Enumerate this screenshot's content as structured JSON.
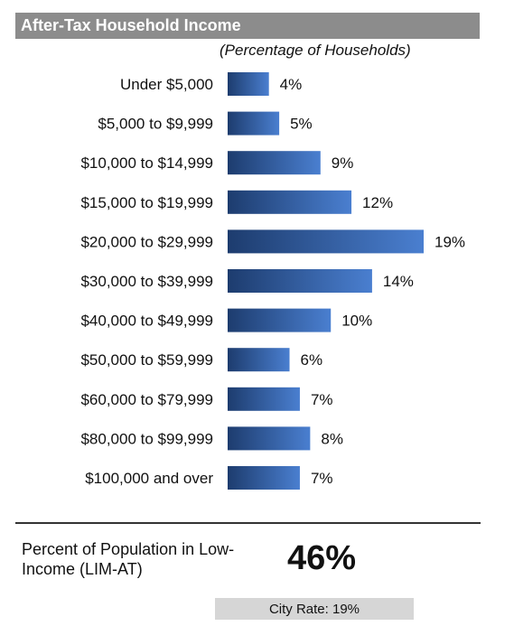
{
  "header": {
    "title": "After-Tax Household Income"
  },
  "chart_data": {
    "type": "bar",
    "orientation": "horizontal",
    "title": "After-Tax Household Income",
    "subtitle": "(Percentage of Households)",
    "categories": [
      "Under $5,000",
      "$5,000 to $9,999",
      "$10,000 to $14,999",
      "$15,000 to $19,999",
      "$20,000 to $29,999",
      "$30,000 to $39,999",
      "$40,000 to $49,999",
      "$50,000 to $59,999",
      "$60,000 to $79,999",
      "$80,000 to $99,999",
      "$100,000 and over"
    ],
    "values": [
      4,
      5,
      9,
      12,
      19,
      14,
      10,
      6,
      7,
      8,
      7
    ],
    "value_labels": [
      "4%",
      "5%",
      "9%",
      "12%",
      "19%",
      "14%",
      "10%",
      "6%",
      "7%",
      "8%",
      "7%"
    ],
    "unit": "%",
    "xlim": [
      0,
      19
    ],
    "grid": false,
    "colors": {
      "bar_dark": "#1d3c6e",
      "bar_light": "#4a7fd0"
    }
  },
  "summary": {
    "label": "Percent of Population in Low-Income (LIM-AT)",
    "value": "46%",
    "city_rate": "City Rate:  19%"
  }
}
